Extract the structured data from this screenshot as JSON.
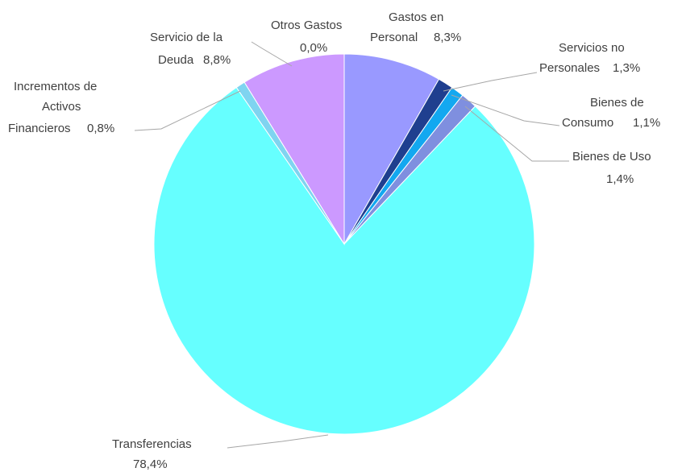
{
  "chart_data": {
    "type": "pie",
    "categories": [
      "Gastos en Personal",
      "Servicios no Personales",
      "Bienes de Consumo",
      "Bienes de Uso",
      "Transferencias",
      "Incrementos de Activos Financieros",
      "Servicio de la Deuda",
      "Otros Gastos"
    ],
    "values": [
      8.3,
      1.3,
      1.1,
      1.4,
      78.4,
      0.8,
      8.8,
      0.0
    ],
    "value_labels": [
      "8,3%",
      "1,3%",
      "1,1%",
      "1,4%",
      "78,4%",
      "0,8%",
      "8,8%",
      "0,0%"
    ],
    "colors": [
      "#9999ff",
      "#1f3f8f",
      "#13a8f0",
      "#7f8fdf",
      "#66ffff",
      "#7fd4f0",
      "#cc99ff",
      "#9966cc"
    ]
  }
}
